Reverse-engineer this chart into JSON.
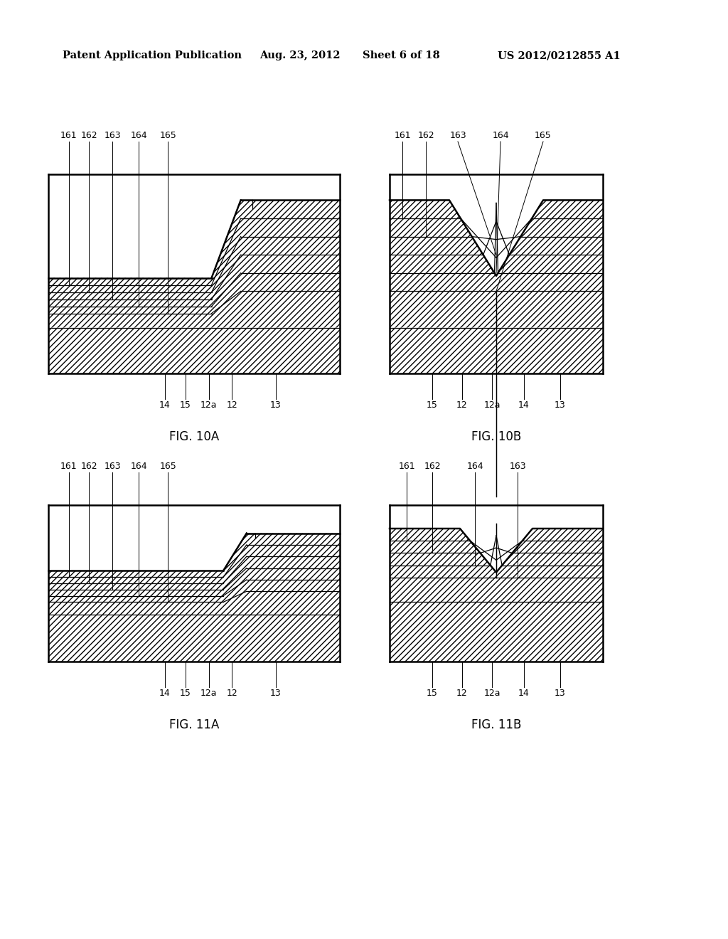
{
  "bg_color": "#ffffff",
  "header_text": "Patent Application Publication",
  "header_date": "Aug. 23, 2012",
  "header_sheet": "Sheet 6 of 18",
  "header_patent": "US 2012/0212855 A1",
  "fig_labels": [
    "FIG. 10A",
    "FIG. 10B",
    "FIG. 11A",
    "FIG. 11B"
  ],
  "bottom_labels_10A": [
    "14",
    "15",
    "12a",
    "12",
    "13"
  ],
  "bottom_labels_10B": [
    "15",
    "12",
    "12a",
    "14",
    "13"
  ],
  "bottom_labels_11A": [
    "14",
    "15",
    "12a",
    "12",
    "13"
  ],
  "bottom_labels_11B": [
    "15",
    "12",
    "12a",
    "14",
    "13"
  ],
  "top_labels_10A": [
    "161",
    "162",
    "163",
    "164",
    "165"
  ],
  "top_labels_10B": [
    "161",
    "162",
    "163",
    "164",
    "165"
  ],
  "top_labels_11A": [
    "161",
    "162",
    "163",
    "164",
    "165"
  ],
  "top_labels_11B": [
    "161",
    "162",
    "164",
    "163"
  ]
}
